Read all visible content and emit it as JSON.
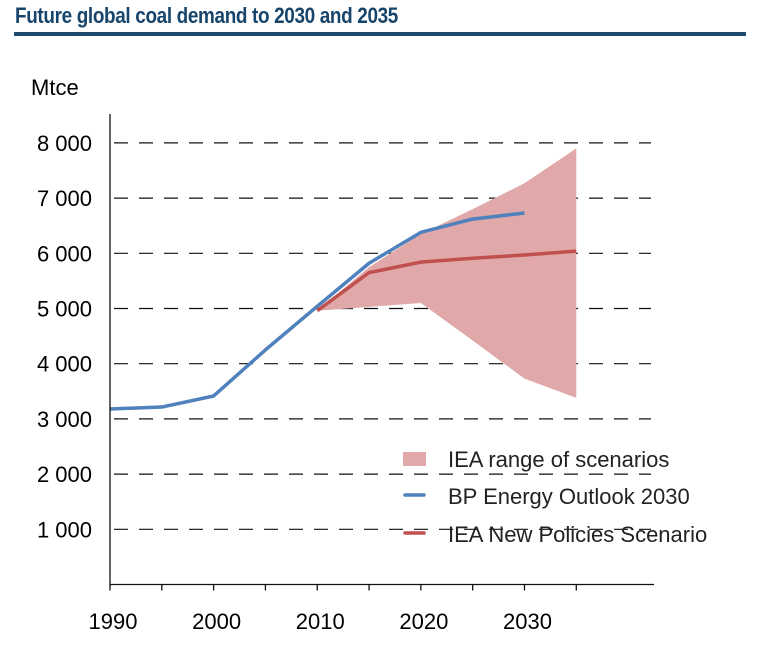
{
  "title": "Future global coal demand to 2030 and 2035",
  "colors": {
    "title": "#17456B",
    "rule": "#1B4A70",
    "bp_line": "#4F81BD",
    "iea_line": "#C0504D",
    "range_fill": "#E0A8A8"
  },
  "chart_data": {
    "type": "line",
    "title": "Future global coal demand to 2030 and 2035",
    "xlabel": "",
    "ylabel": "Mtce",
    "xlim": [
      1990,
      2042.5
    ],
    "ylim": [
      0,
      8500
    ],
    "grid": true,
    "legend_position": "bottom-right",
    "x_ticks": [
      1990,
      1995,
      2000,
      2005,
      2010,
      2015,
      2020,
      2025,
      2030,
      2035
    ],
    "x_tick_labels": [
      "1990",
      "2000",
      "2010",
      "2020",
      "2030"
    ],
    "x_tick_label_values": [
      1990,
      2000,
      2010,
      2020,
      2030
    ],
    "y_ticks": [
      1000,
      2000,
      3000,
      4000,
      5000,
      6000,
      7000,
      8000
    ],
    "y_tick_labels": [
      "1 000",
      "2 000",
      "3 000",
      "4 000",
      "5 000",
      "6 000",
      "7 000",
      "8 000"
    ],
    "series": [
      {
        "name": "IEA range of scenarios",
        "kind": "area",
        "x": [
          2010,
          2015,
          2020,
          2025,
          2030,
          2035
        ],
        "upper": [
          4960,
          5750,
          6350,
          6800,
          7270,
          7900
        ],
        "lower": [
          4960,
          5030,
          5100,
          4420,
          3730,
          3380
        ]
      },
      {
        "name": "BP Energy Outlook 2030",
        "kind": "line",
        "x": [
          1990,
          1995,
          2000,
          2005,
          2010,
          2015,
          2020,
          2025,
          2030
        ],
        "values": [
          3180,
          3215,
          3415,
          4250,
          5040,
          5820,
          6380,
          6620,
          6730
        ]
      },
      {
        "name": "IEA New Policies Scenario",
        "kind": "line",
        "x": [
          2010,
          2015,
          2020,
          2025,
          2030,
          2035
        ],
        "values": [
          4960,
          5650,
          5840,
          5910,
          5970,
          6040
        ]
      }
    ],
    "legend": [
      {
        "label": "IEA range of scenarios",
        "kind": "area"
      },
      {
        "label": "BP Energy Outlook 2030",
        "kind": "line"
      },
      {
        "label": "IEA New Policies Scenario",
        "kind": "line"
      }
    ]
  }
}
